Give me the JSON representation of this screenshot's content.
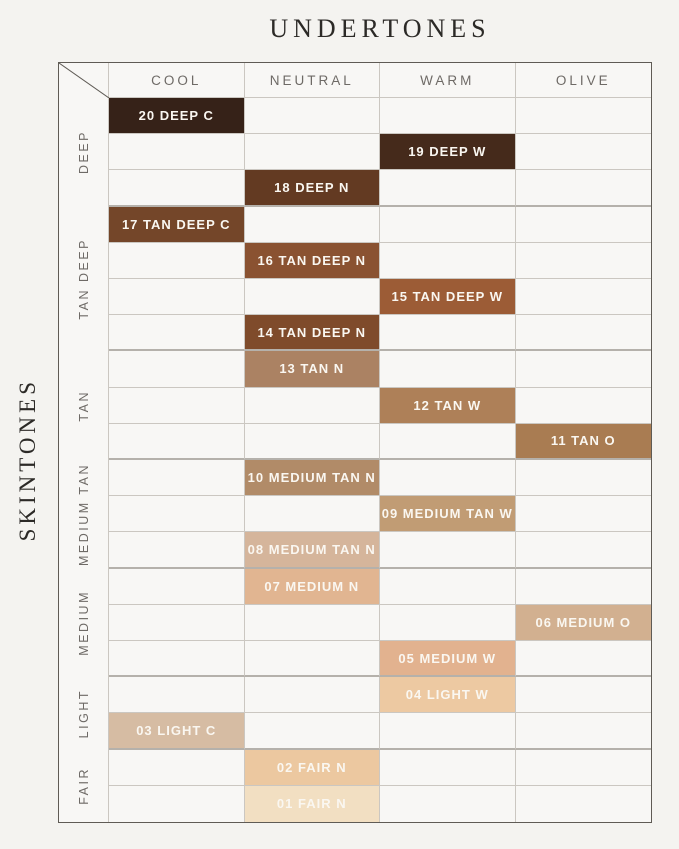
{
  "chart_data": {
    "type": "table",
    "title": "UNDERTONES",
    "row_axis_label": "SKINTONES",
    "columns": [
      "COOL",
      "NEUTRAL",
      "WARM",
      "OLIVE"
    ],
    "row_groups": [
      {
        "label": "DEEP",
        "row_count": 3
      },
      {
        "label": "TAN DEEP",
        "row_count": 4
      },
      {
        "label": "TAN",
        "row_count": 3
      },
      {
        "label": "MEDIUM TAN",
        "row_count": 3
      },
      {
        "label": "MEDIUM",
        "row_count": 3
      },
      {
        "label": "LIGHT",
        "row_count": 2
      },
      {
        "label": "FAIR",
        "row_count": 2
      }
    ],
    "rows": [
      {
        "shade": "20 DEEP C",
        "group": "DEEP",
        "undertone": "COOL",
        "column_index": 0,
        "swatch_color": "#362218"
      },
      {
        "shade": "19 DEEP W",
        "group": "DEEP",
        "undertone": "WARM",
        "column_index": 2,
        "swatch_color": "#452a1b"
      },
      {
        "shade": "18 DEEP N",
        "group": "DEEP",
        "undertone": "NEUTRAL",
        "column_index": 1,
        "swatch_color": "#633a22"
      },
      {
        "shade": "17 TAN DEEP C",
        "group": "TAN DEEP",
        "undertone": "COOL",
        "column_index": 0,
        "swatch_color": "#744629"
      },
      {
        "shade": "16 TAN DEEP N",
        "group": "TAN DEEP",
        "undertone": "NEUTRAL",
        "column_index": 1,
        "swatch_color": "#8a5231"
      },
      {
        "shade": "15 TAN DEEP W",
        "group": "TAN DEEP",
        "undertone": "WARM",
        "column_index": 2,
        "swatch_color": "#9c5c36"
      },
      {
        "shade": "14 TAN DEEP N",
        "group": "TAN DEEP",
        "undertone": "NEUTRAL",
        "column_index": 1,
        "swatch_color": "#7f4b2b"
      },
      {
        "shade": "13 TAN N",
        "group": "TAN",
        "undertone": "NEUTRAL",
        "column_index": 1,
        "swatch_color": "#ab8263"
      },
      {
        "shade": "12 TAN W",
        "group": "TAN",
        "undertone": "WARM",
        "column_index": 2,
        "swatch_color": "#ae8058"
      },
      {
        "shade": "11 TAN O",
        "group": "TAN",
        "undertone": "OLIVE",
        "column_index": 3,
        "swatch_color": "#a97c52"
      },
      {
        "shade": "10 MEDIUM TAN N",
        "group": "MEDIUM TAN",
        "undertone": "NEUTRAL",
        "column_index": 1,
        "swatch_color": "#b18b68"
      },
      {
        "shade": "09 MEDIUM TAN W",
        "group": "MEDIUM TAN",
        "undertone": "WARM",
        "column_index": 2,
        "swatch_color": "#c19c74"
      },
      {
        "shade": "08 MEDIUM TAN N",
        "group": "MEDIUM TAN",
        "undertone": "NEUTRAL",
        "column_index": 1,
        "swatch_color": "#d5b59b"
      },
      {
        "shade": "07 MEDIUM N",
        "group": "MEDIUM",
        "undertone": "NEUTRAL",
        "column_index": 1,
        "swatch_color": "#e1b591"
      },
      {
        "shade": "06 MEDIUM O",
        "group": "MEDIUM",
        "undertone": "OLIVE",
        "column_index": 3,
        "swatch_color": "#d2b090"
      },
      {
        "shade": "05 MEDIUM W",
        "group": "MEDIUM",
        "undertone": "WARM",
        "column_index": 2,
        "swatch_color": "#e2b28f"
      },
      {
        "shade": "04 LIGHT W",
        "group": "LIGHT",
        "undertone": "WARM",
        "column_index": 2,
        "swatch_color": "#edc9a2"
      },
      {
        "shade": "03 LIGHT C",
        "group": "LIGHT",
        "undertone": "COOL",
        "column_index": 0,
        "swatch_color": "#d6bca3"
      },
      {
        "shade": "02 FAIR N",
        "group": "FAIR",
        "undertone": "NEUTRAL",
        "column_index": 1,
        "swatch_color": "#ecc8a0"
      },
      {
        "shade": "01 FAIR N",
        "group": "FAIR",
        "undertone": "NEUTRAL",
        "column_index": 1,
        "swatch_color": "#f2dfc2"
      }
    ]
  },
  "style": {
    "page_bg": "#f4f3f0",
    "cell_bg": "#f8f7f5",
    "grid_line": "#cbc7c1",
    "group_boundary_line": "#b5b1ab",
    "outer_border": "#5f5b55",
    "header_label_color": "#6e6a66",
    "title_color": "#2c2a27",
    "shade_text_color": "#faf7f1"
  }
}
